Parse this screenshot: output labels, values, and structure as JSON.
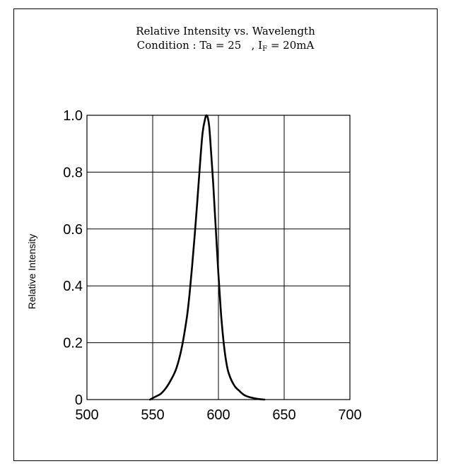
{
  "chart_data": {
    "type": "line",
    "title": "Relative Intensity vs. Wavelength",
    "subtitle": {
      "prefix": "Condition : Ta = 25",
      "middle": ", I",
      "subscript": "F",
      "suffix": " = 20mA"
    },
    "xlabel": "",
    "ylabel": "Relative Intensity",
    "xlim": [
      500,
      700
    ],
    "ylim": [
      0,
      1.0
    ],
    "x_ticks": [
      {
        "value": 500,
        "label": "500"
      },
      {
        "value": 550,
        "label": "550"
      },
      {
        "value": 600,
        "label": "600"
      },
      {
        "value": 650,
        "label": "650"
      },
      {
        "value": 700,
        "label": "700"
      }
    ],
    "y_ticks": [
      {
        "value": 0,
        "label": "0"
      },
      {
        "value": 0.2,
        "label": "0.2"
      },
      {
        "value": 0.4,
        "label": "0.4"
      },
      {
        "value": 0.6,
        "label": "0.6"
      },
      {
        "value": 0.8,
        "label": "0.8"
      },
      {
        "value": 1.0,
        "label": "1.0"
      }
    ],
    "grid": true,
    "legend": "none",
    "series": [
      {
        "color": "#000000",
        "x": [
          548,
          552,
          556,
          560,
          564,
          568,
          572,
          576,
          578,
          580,
          582,
          584,
          586,
          588,
          590,
          591,
          592,
          593,
          594,
          596,
          598,
          600,
          602,
          604,
          606,
          608,
          612,
          616,
          620,
          624,
          628,
          632,
          635
        ],
        "y": [
          0.0,
          0.01,
          0.02,
          0.04,
          0.07,
          0.11,
          0.18,
          0.29,
          0.37,
          0.47,
          0.58,
          0.7,
          0.83,
          0.94,
          0.99,
          1.0,
          0.99,
          0.96,
          0.9,
          0.76,
          0.6,
          0.44,
          0.3,
          0.2,
          0.13,
          0.09,
          0.05,
          0.03,
          0.015,
          0.008,
          0.004,
          0.001,
          0.0
        ]
      }
    ]
  }
}
